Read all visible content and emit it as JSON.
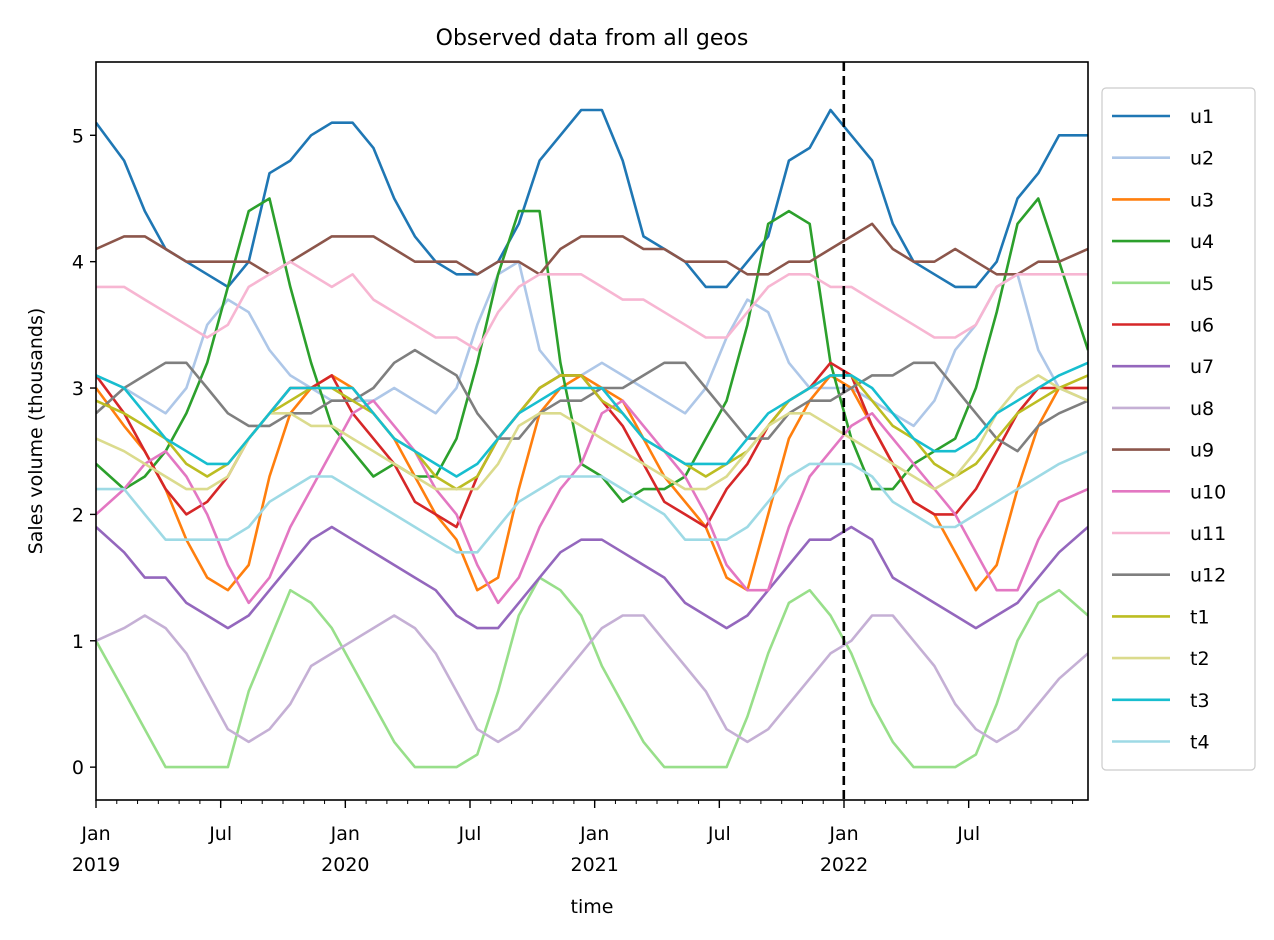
{
  "chart_data": {
    "type": "line",
    "title": "Observed data from all geos",
    "xlabel": "time",
    "ylabel": "Sales volume (thousands)",
    "xlim": [
      "2019-01-06",
      "2022-12-25"
    ],
    "ylim": [
      -0.26,
      5.58
    ],
    "yticks": [
      0,
      1,
      2,
      3,
      4,
      5
    ],
    "xticks": [
      {
        "date": "2019-01",
        "label": "Jan",
        "year": "2019"
      },
      {
        "date": "2019-07",
        "label": "Jul",
        "year": ""
      },
      {
        "date": "2020-01",
        "label": "Jan",
        "year": "2020"
      },
      {
        "date": "2020-07",
        "label": "Jul",
        "year": ""
      },
      {
        "date": "2021-01",
        "label": "Jan",
        "year": "2021"
      },
      {
        "date": "2021-07",
        "label": "Jul",
        "year": ""
      },
      {
        "date": "2022-01",
        "label": "Jan",
        "year": "2022"
      },
      {
        "date": "2022-07",
        "label": "Jul",
        "year": ""
      }
    ],
    "vline": {
      "date": "2022-01-01",
      "style": "dashed",
      "color": "#000000"
    },
    "legend": "outside-right",
    "grid": false,
    "x_start_month": "2019-01",
    "x_frequency": "monthly (approx.)",
    "series": [
      {
        "name": "u1",
        "color": "#1f77b4",
        "values": [
          5.1,
          4.8,
          4.4,
          4.1,
          4.0,
          3.9,
          3.8,
          4.0,
          4.7,
          4.8,
          5.0,
          5.1,
          5.1,
          4.9,
          4.5,
          4.2,
          4.0,
          3.9,
          3.9,
          4.0,
          4.3,
          4.8,
          5.0,
          5.2,
          5.2,
          4.8,
          4.2,
          4.1,
          4.0,
          3.8,
          3.8,
          4.0,
          4.2,
          4.8,
          4.9,
          5.2,
          5.0,
          4.8,
          4.3,
          4.0,
          3.9,
          3.8,
          3.8,
          4.0,
          4.5,
          4.7,
          5.0,
          5.0
        ]
      },
      {
        "name": "u2",
        "color": "#aec7e8",
        "values": [
          3.1,
          3.0,
          2.9,
          2.8,
          3.0,
          3.5,
          3.7,
          3.6,
          3.3,
          3.1,
          3.0,
          2.9,
          2.9,
          2.9,
          3.0,
          2.9,
          2.8,
          3.0,
          3.5,
          3.9,
          4.0,
          3.3,
          3.1,
          3.1,
          3.2,
          3.1,
          3.0,
          2.9,
          2.8,
          3.0,
          3.4,
          3.7,
          3.6,
          3.2,
          3.0,
          3.0,
          3.0,
          2.9,
          2.8,
          2.7,
          2.9,
          3.3,
          3.5,
          3.8,
          3.9,
          3.3,
          3.0,
          2.9
        ]
      },
      {
        "name": "u3",
        "color": "#ff7f0e",
        "values": [
          3.0,
          2.7,
          2.5,
          2.2,
          1.8,
          1.5,
          1.4,
          1.6,
          2.3,
          2.8,
          3.0,
          3.1,
          3.0,
          2.8,
          2.6,
          2.3,
          2.0,
          1.8,
          1.4,
          1.5,
          2.2,
          2.8,
          3.0,
          3.1,
          3.0,
          2.9,
          2.6,
          2.3,
          2.1,
          1.9,
          1.5,
          1.4,
          2.0,
          2.6,
          2.9,
          3.1,
          3.0,
          2.7,
          2.4,
          2.1,
          2.0,
          1.7,
          1.4,
          1.6,
          2.2,
          2.7,
          3.0,
          3.0
        ]
      },
      {
        "name": "u4",
        "color": "#2ca02c",
        "values": [
          2.4,
          2.2,
          2.3,
          2.5,
          2.8,
          3.2,
          3.8,
          4.4,
          4.5,
          3.8,
          3.2,
          2.7,
          2.5,
          2.3,
          2.4,
          2.3,
          2.3,
          2.6,
          3.2,
          3.9,
          4.4,
          4.4,
          3.2,
          2.4,
          2.3,
          2.1,
          2.2,
          2.2,
          2.3,
          2.6,
          2.9,
          3.5,
          4.3,
          4.4,
          4.3,
          3.2,
          2.6,
          2.2,
          2.2,
          2.4,
          2.5,
          2.6,
          3.0,
          3.6,
          4.3,
          4.5,
          4.0,
          3.3
        ]
      },
      {
        "name": "u5",
        "color": "#98df8a",
        "values": [
          1.0,
          0.6,
          0.3,
          0.0,
          0.0,
          0.0,
          0.0,
          0.6,
          1.0,
          1.4,
          1.3,
          1.1,
          0.8,
          0.5,
          0.2,
          0.0,
          0.0,
          0.0,
          0.1,
          0.6,
          1.2,
          1.5,
          1.4,
          1.2,
          0.8,
          0.5,
          0.2,
          0.0,
          0.0,
          0.0,
          0.0,
          0.4,
          0.9,
          1.3,
          1.4,
          1.2,
          0.9,
          0.5,
          0.2,
          0.0,
          0.0,
          0.0,
          0.1,
          0.5,
          1.0,
          1.3,
          1.4,
          1.2
        ]
      },
      {
        "name": "u6",
        "color": "#d62728",
        "values": [
          3.1,
          2.8,
          2.5,
          2.2,
          2.0,
          2.1,
          2.3,
          2.6,
          2.8,
          3.0,
          3.0,
          3.1,
          2.8,
          2.6,
          2.4,
          2.1,
          2.0,
          1.9,
          2.3,
          2.6,
          2.8,
          3.0,
          3.1,
          3.1,
          2.9,
          2.7,
          2.4,
          2.1,
          2.0,
          1.9,
          2.2,
          2.4,
          2.7,
          2.9,
          3.0,
          3.2,
          3.1,
          2.7,
          2.4,
          2.1,
          2.0,
          2.0,
          2.2,
          2.5,
          2.8,
          3.0,
          3.0,
          3.0
        ]
      },
      {
        "name": "u7",
        "color": "#9467bd",
        "values": [
          1.9,
          1.7,
          1.5,
          1.5,
          1.3,
          1.2,
          1.1,
          1.2,
          1.4,
          1.6,
          1.8,
          1.9,
          1.8,
          1.7,
          1.6,
          1.5,
          1.4,
          1.2,
          1.1,
          1.1,
          1.3,
          1.5,
          1.7,
          1.8,
          1.8,
          1.7,
          1.6,
          1.5,
          1.3,
          1.2,
          1.1,
          1.2,
          1.4,
          1.6,
          1.8,
          1.8,
          1.9,
          1.8,
          1.5,
          1.4,
          1.3,
          1.2,
          1.1,
          1.2,
          1.3,
          1.5,
          1.7,
          1.9
        ]
      },
      {
        "name": "u8",
        "color": "#c5b0d5",
        "values": [
          1.0,
          1.1,
          1.2,
          1.1,
          0.9,
          0.6,
          0.3,
          0.2,
          0.3,
          0.5,
          0.8,
          0.9,
          1.0,
          1.1,
          1.2,
          1.1,
          0.9,
          0.6,
          0.3,
          0.2,
          0.3,
          0.5,
          0.7,
          0.9,
          1.1,
          1.2,
          1.2,
          1.0,
          0.8,
          0.6,
          0.3,
          0.2,
          0.3,
          0.5,
          0.7,
          0.9,
          1.0,
          1.2,
          1.2,
          1.0,
          0.8,
          0.5,
          0.3,
          0.2,
          0.3,
          0.5,
          0.7,
          0.9
        ]
      },
      {
        "name": "u9",
        "color": "#8c564b",
        "values": [
          4.1,
          4.2,
          4.2,
          4.1,
          4.0,
          4.0,
          4.0,
          4.0,
          3.9,
          4.0,
          4.1,
          4.2,
          4.2,
          4.2,
          4.1,
          4.0,
          4.0,
          4.0,
          3.9,
          4.0,
          4.0,
          3.9,
          4.1,
          4.2,
          4.2,
          4.2,
          4.1,
          4.1,
          4.0,
          4.0,
          4.0,
          3.9,
          3.9,
          4.0,
          4.0,
          4.1,
          4.2,
          4.3,
          4.1,
          4.0,
          4.0,
          4.1,
          4.0,
          3.9,
          3.9,
          4.0,
          4.0,
          4.1
        ]
      },
      {
        "name": "u10",
        "color": "#e377c2",
        "values": [
          2.0,
          2.2,
          2.4,
          2.5,
          2.3,
          2.0,
          1.6,
          1.3,
          1.5,
          1.9,
          2.2,
          2.5,
          2.8,
          2.9,
          2.7,
          2.5,
          2.2,
          2.0,
          1.6,
          1.3,
          1.5,
          1.9,
          2.2,
          2.4,
          2.8,
          2.9,
          2.7,
          2.5,
          2.3,
          2.0,
          1.6,
          1.4,
          1.4,
          1.9,
          2.3,
          2.5,
          2.7,
          2.8,
          2.6,
          2.4,
          2.2,
          2.0,
          1.7,
          1.4,
          1.4,
          1.8,
          2.1,
          2.2
        ]
      },
      {
        "name": "u11",
        "color": "#f7b6d2",
        "values": [
          3.8,
          3.8,
          3.7,
          3.6,
          3.5,
          3.4,
          3.5,
          3.8,
          3.9,
          4.0,
          3.9,
          3.8,
          3.9,
          3.7,
          3.6,
          3.5,
          3.4,
          3.4,
          3.3,
          3.6,
          3.8,
          3.9,
          3.9,
          3.9,
          3.8,
          3.7,
          3.7,
          3.6,
          3.5,
          3.4,
          3.4,
          3.6,
          3.8,
          3.9,
          3.9,
          3.8,
          3.8,
          3.7,
          3.6,
          3.5,
          3.4,
          3.4,
          3.5,
          3.8,
          3.9,
          3.9,
          3.9,
          3.9
        ]
      },
      {
        "name": "u12",
        "color": "#7f7f7f",
        "values": [
          2.8,
          3.0,
          3.1,
          3.2,
          3.2,
          3.0,
          2.8,
          2.7,
          2.7,
          2.8,
          2.8,
          2.9,
          2.9,
          3.0,
          3.2,
          3.3,
          3.2,
          3.1,
          2.8,
          2.6,
          2.6,
          2.8,
          2.9,
          2.9,
          3.0,
          3.0,
          3.1,
          3.2,
          3.2,
          3.0,
          2.8,
          2.6,
          2.6,
          2.8,
          2.9,
          2.9,
          3.0,
          3.1,
          3.1,
          3.2,
          3.2,
          3.0,
          2.8,
          2.6,
          2.5,
          2.7,
          2.8,
          2.9
        ]
      },
      {
        "name": "t1",
        "color": "#bcbd22",
        "values": [
          2.9,
          2.8,
          2.7,
          2.6,
          2.4,
          2.3,
          2.4,
          2.6,
          2.8,
          2.9,
          3.0,
          3.0,
          2.9,
          2.8,
          2.6,
          2.5,
          2.3,
          2.2,
          2.3,
          2.6,
          2.8,
          3.0,
          3.1,
          3.1,
          2.9,
          2.8,
          2.6,
          2.5,
          2.4,
          2.3,
          2.4,
          2.5,
          2.7,
          2.9,
          3.0,
          3.1,
          3.1,
          2.9,
          2.7,
          2.6,
          2.4,
          2.3,
          2.4,
          2.6,
          2.8,
          2.9,
          3.0,
          3.1
        ]
      },
      {
        "name": "t2",
        "color": "#dbdb8d",
        "values": [
          2.6,
          2.5,
          2.4,
          2.3,
          2.2,
          2.2,
          2.3,
          2.6,
          2.8,
          2.8,
          2.7,
          2.7,
          2.6,
          2.5,
          2.4,
          2.3,
          2.2,
          2.2,
          2.2,
          2.4,
          2.7,
          2.8,
          2.8,
          2.7,
          2.6,
          2.5,
          2.4,
          2.3,
          2.2,
          2.2,
          2.3,
          2.5,
          2.7,
          2.8,
          2.8,
          2.7,
          2.6,
          2.5,
          2.4,
          2.3,
          2.2,
          2.3,
          2.5,
          2.8,
          3.0,
          3.1,
          3.0,
          2.9
        ]
      },
      {
        "name": "t3",
        "color": "#17becf",
        "values": [
          3.1,
          3.0,
          2.8,
          2.6,
          2.5,
          2.4,
          2.4,
          2.6,
          2.8,
          3.0,
          3.0,
          3.0,
          3.0,
          2.8,
          2.6,
          2.5,
          2.4,
          2.3,
          2.4,
          2.6,
          2.8,
          2.9,
          3.0,
          3.0,
          3.0,
          2.8,
          2.6,
          2.5,
          2.4,
          2.4,
          2.4,
          2.6,
          2.8,
          2.9,
          3.0,
          3.1,
          3.1,
          3.0,
          2.8,
          2.6,
          2.5,
          2.5,
          2.6,
          2.8,
          2.9,
          3.0,
          3.1,
          3.2
        ]
      },
      {
        "name": "t4",
        "color": "#9edae5",
        "values": [
          2.2,
          2.2,
          2.0,
          1.8,
          1.8,
          1.8,
          1.8,
          1.9,
          2.1,
          2.2,
          2.3,
          2.3,
          2.2,
          2.1,
          2.0,
          1.9,
          1.8,
          1.7,
          1.7,
          1.9,
          2.1,
          2.2,
          2.3,
          2.3,
          2.3,
          2.2,
          2.1,
          2.0,
          1.8,
          1.8,
          1.8,
          1.9,
          2.1,
          2.3,
          2.4,
          2.4,
          2.4,
          2.3,
          2.1,
          2.0,
          1.9,
          1.9,
          2.0,
          2.1,
          2.2,
          2.3,
          2.4,
          2.5
        ]
      }
    ]
  }
}
